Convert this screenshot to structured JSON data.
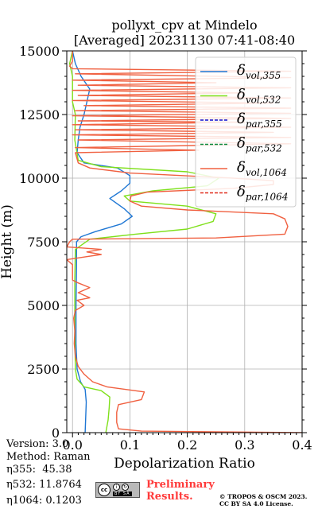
{
  "title_line1": "pollyxt_cpv at Mindelo",
  "title_line2": "[Averaged] 20231130 07:41-08:40",
  "info": {
    "version": "Version: 3.0",
    "method": "Method: Raman",
    "eta355": "η355:  45.38",
    "eta532": "η532: 11.8764",
    "eta1064": "η1064: 0.1203"
  },
  "preliminary_line1": "Preliminary",
  "preliminary_line2": "Results.",
  "copyright_line1": "© TROPOS & OSCM 2023.",
  "copyright_line2": "CC BY SA 4.0 License.",
  "license_badge": {
    "cc": "cc",
    "by": "BY",
    "sa": "SA"
  },
  "chart_data": {
    "type": "line",
    "xlabel": "Depolarization Ratio",
    "ylabel": "Height (m)",
    "xlim": [
      -0.01,
      0.4
    ],
    "ylim": [
      0,
      15000
    ],
    "xticks": [
      0.0,
      0.1,
      0.2,
      0.3,
      0.4
    ],
    "xtick_labels": [
      "0.0",
      "0.1",
      "0.2",
      "0.3",
      "0.4"
    ],
    "yticks": [
      0,
      2500,
      5000,
      7500,
      10000,
      12500,
      15000
    ],
    "ytick_labels": [
      "0",
      "2500",
      "5000",
      "7500",
      "10000",
      "12500",
      "15000"
    ],
    "grid": true,
    "legend_placement": "top-right",
    "series": [
      {
        "name": "δ_vol,355",
        "legend_main": "δ",
        "legend_sub": "vol,355",
        "color": "#1f77d4",
        "dash": "solid",
        "points": [
          [
            0.022,
            0
          ],
          [
            0.023,
            600
          ],
          [
            0.024,
            1200
          ],
          [
            0.022,
            1700
          ],
          [
            0.014,
            2000
          ],
          [
            0.008,
            2500
          ],
          [
            0.006,
            3500
          ],
          [
            0.006,
            5000
          ],
          [
            0.007,
            6500
          ],
          [
            0.007,
            7500
          ],
          [
            0.015,
            7700
          ],
          [
            0.04,
            7900
          ],
          [
            0.085,
            8200
          ],
          [
            0.104,
            8500
          ],
          [
            0.09,
            8800
          ],
          [
            0.065,
            9200
          ],
          [
            0.085,
            9500
          ],
          [
            0.1,
            9800
          ],
          [
            0.1,
            10100
          ],
          [
            0.078,
            10400
          ],
          [
            0.02,
            10600
          ],
          [
            0.008,
            11000
          ],
          [
            0.01,
            11500
          ],
          [
            0.013,
            12000
          ],
          [
            0.02,
            12500
          ],
          [
            0.025,
            13000
          ],
          [
            0.03,
            13500
          ],
          [
            0.015,
            14000
          ],
          [
            0.005,
            14500
          ],
          [
            0.0,
            15000
          ]
        ]
      },
      {
        "name": "δ_vol,532",
        "legend_main": "δ",
        "legend_sub": "vol,532",
        "color": "#7fe01a",
        "dash": "solid",
        "points": [
          [
            0.058,
            0
          ],
          [
            0.062,
            500
          ],
          [
            0.064,
            1000
          ],
          [
            0.065,
            1400
          ],
          [
            0.05,
            1650
          ],
          [
            0.02,
            1800
          ],
          [
            0.008,
            2100
          ],
          [
            0.005,
            2500
          ],
          [
            0.004,
            4000
          ],
          [
            0.004,
            6000
          ],
          [
            0.005,
            7200
          ],
          [
            0.03,
            7600
          ],
          [
            0.11,
            7800
          ],
          [
            0.2,
            8000
          ],
          [
            0.245,
            8300
          ],
          [
            0.25,
            8600
          ],
          [
            0.2,
            8900
          ],
          [
            0.1,
            9100
          ],
          [
            0.09,
            9300
          ],
          [
            0.14,
            9500
          ],
          [
            0.235,
            9700
          ],
          [
            0.255,
            10000
          ],
          [
            0.2,
            10250
          ],
          [
            0.05,
            10450
          ],
          [
            0.01,
            10700
          ],
          [
            0.004,
            11500
          ],
          [
            0.005,
            12500
          ],
          [
            0.0,
            13000
          ],
          [
            0.0,
            14000
          ],
          [
            -0.005,
            14500
          ],
          [
            0.0,
            15000
          ]
        ]
      },
      {
        "name": "δ_par,355",
        "legend_main": "δ",
        "legend_sub": "par,355",
        "color": "#1010d0",
        "dash": "dashed",
        "points": []
      },
      {
        "name": "δ_par,532",
        "legend_main": "δ",
        "legend_sub": "par,532",
        "color": "#0e8a3c",
        "dash": "dashed",
        "points": []
      },
      {
        "name": "δ_vol,1064",
        "legend_main": "δ",
        "legend_sub": "vol,1064",
        "color": "#f06040",
        "dash": "solid",
        "points": [
          [
            0.4,
            0
          ],
          [
            0.12,
            60
          ],
          [
            0.08,
            150
          ],
          [
            0.077,
            400
          ],
          [
            0.077,
            800
          ],
          [
            0.08,
            1100
          ],
          [
            0.12,
            1300
          ],
          [
            0.125,
            1600
          ],
          [
            0.06,
            1800
          ],
          [
            0.035,
            2000
          ],
          [
            0.02,
            2300
          ],
          [
            0.01,
            2600
          ],
          [
            0.005,
            3000
          ],
          [
            0.003,
            3500
          ],
          [
            0.004,
            4000
          ],
          [
            0.002,
            4500
          ],
          [
            0.005,
            4800
          ],
          [
            0.02,
            5000
          ],
          [
            0.008,
            5200
          ],
          [
            0.03,
            5300
          ],
          [
            0.01,
            5500
          ],
          [
            0.03,
            5700
          ],
          [
            0.008,
            5900
          ],
          [
            0.0,
            6000
          ],
          [
            0.0,
            6600
          ],
          [
            -0.01,
            6800
          ],
          [
            0.02,
            6900
          ],
          [
            0.05,
            7000
          ],
          [
            0.025,
            7100
          ],
          [
            0.05,
            7200
          ],
          [
            -0.01,
            7300
          ],
          [
            -0.005,
            7500
          ],
          [
            0.0,
            7600
          ],
          [
            0.25,
            7650
          ],
          [
            0.37,
            7800
          ],
          [
            0.375,
            8100
          ],
          [
            0.37,
            8400
          ],
          [
            0.35,
            8600
          ],
          [
            0.2,
            8750
          ],
          [
            0.12,
            8900
          ],
          [
            0.1,
            9100
          ],
          [
            0.102,
            9300
          ],
          [
            0.13,
            9450
          ],
          [
            0.28,
            9600
          ],
          [
            0.35,
            9750
          ],
          [
            0.35,
            9900
          ],
          [
            0.28,
            10000
          ],
          [
            0.1,
            10200
          ],
          [
            0.03,
            10400
          ],
          [
            0.01,
            10600
          ],
          [
            0.005,
            11000
          ],
          [
            0.22,
            11100
          ],
          [
            0.005,
            11200
          ],
          [
            0.38,
            11350
          ],
          [
            0.01,
            11500
          ],
          [
            0.38,
            11600
          ],
          [
            0.0,
            11700
          ],
          [
            0.35,
            11800
          ],
          [
            0.005,
            11900
          ],
          [
            0.38,
            12000
          ],
          [
            0.0,
            12100
          ],
          [
            0.3,
            12200
          ],
          [
            0.01,
            12250
          ],
          [
            0.38,
            12350
          ],
          [
            0.0,
            12450
          ],
          [
            0.38,
            12550
          ],
          [
            0.005,
            12650
          ],
          [
            0.38,
            12750
          ],
          [
            0.02,
            12850
          ],
          [
            0.35,
            12950
          ],
          [
            0.0,
            13050
          ],
          [
            0.38,
            13150
          ],
          [
            0.01,
            13250
          ],
          [
            0.3,
            13350
          ],
          [
            0.0,
            13450
          ],
          [
            0.38,
            13550
          ],
          [
            0.01,
            13650
          ],
          [
            0.25,
            13750
          ],
          [
            0.0,
            13850
          ],
          [
            0.38,
            13950
          ],
          [
            0.005,
            14100
          ],
          [
            0.38,
            14200
          ],
          [
            0.0,
            14300
          ],
          [
            -0.005,
            14400
          ],
          [
            0.0,
            14600
          ],
          [
            0.0,
            15000
          ]
        ]
      },
      {
        "name": "δ_par,1064",
        "legend_main": "δ",
        "legend_sub": "par,1064",
        "color": "#e02a1a",
        "dash": "dashed",
        "points": []
      }
    ]
  }
}
